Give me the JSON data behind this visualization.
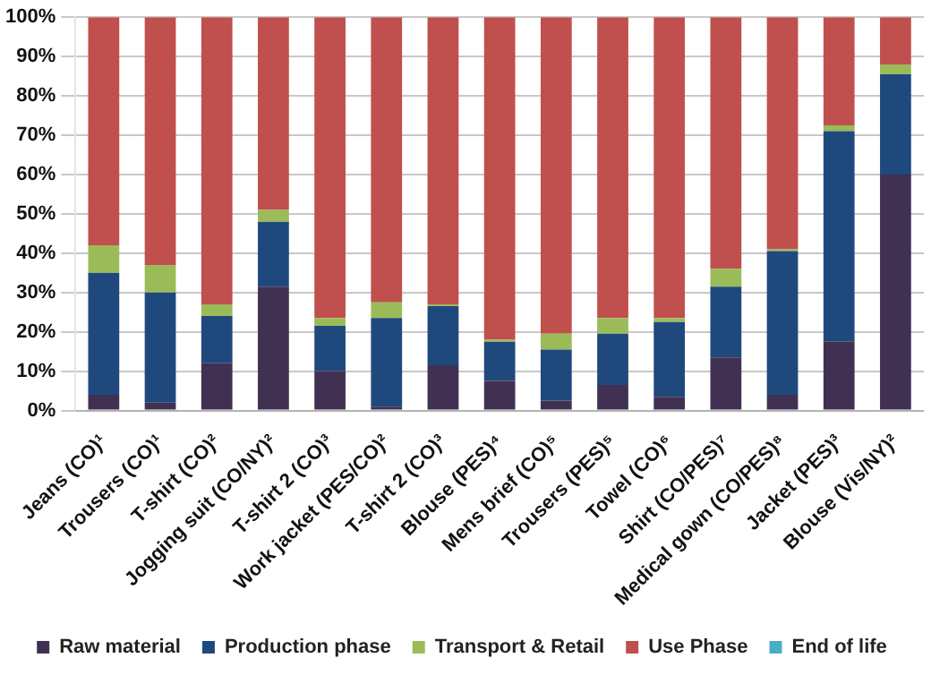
{
  "chart_data": {
    "type": "bar",
    "stacked": true,
    "categories": [
      "Jeans (CO)¹",
      "Trousers (CO)¹",
      "T-shirt (CO)²",
      "Jogging suit (CO/NY)²",
      "T-shirt 2 (CO)³",
      "Work jacket (PES/CO)²",
      "T-shirt 2 (CO)³",
      "Blouse (PES)⁴",
      "Mens brief (CO)⁵",
      "Trousers (PES)⁵",
      "Towel (CO)⁶",
      "Shirt (CO/PES)⁷",
      "Medical gown (CO/PES)⁸",
      "Jacket (PES)³",
      "Blouse (Vis/NY)²"
    ],
    "series": [
      {
        "name": "Raw material",
        "color": "#403152",
        "values": [
          4,
          2,
          12,
          31.5,
          10,
          1,
          11.5,
          7.5,
          2.5,
          6.5,
          3.5,
          13.5,
          4,
          17.5,
          60
        ]
      },
      {
        "name": "Production phase",
        "color": "#1f497d",
        "values": [
          31,
          28,
          12,
          16.5,
          11.5,
          22.5,
          15,
          10,
          13,
          13,
          19,
          18,
          36.5,
          53.5,
          25.5
        ]
      },
      {
        "name": "Transport & Retail",
        "color": "#9bbb59",
        "values": [
          7,
          7,
          3,
          3,
          2,
          4,
          0.5,
          0.5,
          4,
          4,
          1,
          4.5,
          0.5,
          1.5,
          2.5
        ]
      },
      {
        "name": "Use Phase",
        "color": "#c0504d",
        "values": [
          58,
          63,
          73,
          49,
          76.5,
          72.5,
          73,
          82,
          80.5,
          76.5,
          76.5,
          64,
          59,
          27.5,
          12
        ]
      },
      {
        "name": "End of life",
        "color": "#4bacc6",
        "values": [
          0,
          0,
          0,
          0,
          0,
          0,
          0,
          0,
          0,
          0,
          0,
          0,
          0,
          0,
          0
        ]
      }
    ],
    "ylim": [
      0,
      100
    ],
    "yticks": [
      {
        "value": 0,
        "label": "0%"
      },
      {
        "value": 10,
        "label": "10%"
      },
      {
        "value": 20,
        "label": "20%"
      },
      {
        "value": 30,
        "label": "30%"
      },
      {
        "value": 40,
        "label": "40%"
      },
      {
        "value": 50,
        "label": "50%"
      },
      {
        "value": 60,
        "label": "60%"
      },
      {
        "value": 70,
        "label": "70%"
      },
      {
        "value": 80,
        "label": "80%"
      },
      {
        "value": 90,
        "label": "90%"
      },
      {
        "value": 100,
        "label": "100%"
      }
    ],
    "grid": "y",
    "legend": "bottom"
  }
}
